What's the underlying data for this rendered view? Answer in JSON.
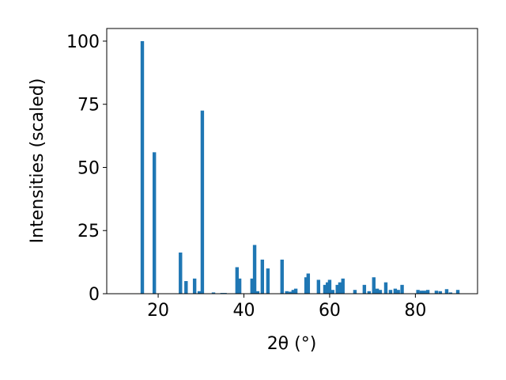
{
  "chart_data": {
    "type": "bar",
    "xlabel": "2θ (°)",
    "ylabel": "Intensities (scaled)",
    "x": [
      16.3,
      19.1,
      25.2,
      26.5,
      28.5,
      29.6,
      30.3,
      32.9,
      34.9,
      35.6,
      38.4,
      39.0,
      41.9,
      42.5,
      43.2,
      44.3,
      45.6,
      48.9,
      50.0,
      50.8,
      51.5,
      52.1,
      54.5,
      55.0,
      57.4,
      58.9,
      59.5,
      60.0,
      60.7,
      61.8,
      62.4,
      63.1,
      65.9,
      68.1,
      69.2,
      70.3,
      71.1,
      71.8,
      73.1,
      74.2,
      75.3,
      76.0,
      76.9,
      80.6,
      81.4,
      82.1,
      82.9,
      84.9,
      85.8,
      87.3,
      88.2,
      89.9
    ],
    "values": [
      100,
      56,
      16.3,
      5,
      6,
      1,
      72.5,
      0.5,
      0.3,
      0.3,
      10.5,
      6,
      6,
      19.3,
      1,
      13.5,
      10,
      13.5,
      1,
      0.8,
      1.5,
      2,
      6.5,
      8,
      5.5,
      3.5,
      4.5,
      5.5,
      1.5,
      3.5,
      4.5,
      6,
      1.5,
      3.5,
      1,
      6.5,
      2,
      1.5,
      4.5,
      1.5,
      2,
      1.5,
      3.5,
      1.5,
      1.2,
      1.2,
      1.5,
      1.2,
      1,
      1.8,
      0.5,
      1.5
    ],
    "color": "#1f77b4",
    "xlim": [
      8.0,
      94.5
    ],
    "xticks": [
      20,
      40,
      60,
      80
    ],
    "ylim": [
      0,
      105
    ],
    "yticks": [
      0,
      25,
      50,
      75,
      100
    ],
    "grid": false
  }
}
